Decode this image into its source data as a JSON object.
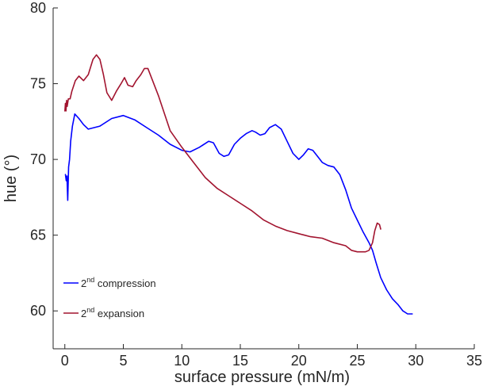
{
  "chart_data": {
    "type": "line",
    "title": "",
    "xlabel": "surface pressure (mN/m)",
    "ylabel": "hue (°)",
    "xlim": [
      -1,
      35
    ],
    "ylim": [
      57.5,
      80
    ],
    "x_ticks": [
      0,
      5,
      10,
      15,
      20,
      25,
      30,
      35
    ],
    "y_ticks": [
      60,
      65,
      70,
      75,
      80
    ],
    "grid": false,
    "legend_position": "bottom-left",
    "series": [
      {
        "name": "compression",
        "legend": {
          "prefix": "2",
          "sup": "nd",
          "suffix": " compression"
        },
        "color": "#0000ff",
        "points": [
          [
            0.05,
            69.0
          ],
          [
            0.12,
            68.6
          ],
          [
            0.18,
            68.9
          ],
          [
            0.25,
            67.3
          ],
          [
            0.32,
            69.5
          ],
          [
            0.4,
            70.0
          ],
          [
            0.5,
            71.2
          ],
          [
            0.65,
            72.2
          ],
          [
            0.85,
            73.0
          ],
          [
            1.2,
            72.7
          ],
          [
            1.6,
            72.3
          ],
          [
            2.0,
            72.0
          ],
          [
            3.0,
            72.2
          ],
          [
            4.0,
            72.7
          ],
          [
            5.0,
            72.9
          ],
          [
            6.0,
            72.6
          ],
          [
            7.0,
            72.1
          ],
          [
            8.0,
            71.6
          ],
          [
            9.0,
            71.0
          ],
          [
            10.0,
            70.6
          ],
          [
            10.7,
            70.5
          ],
          [
            11.5,
            70.8
          ],
          [
            12.3,
            71.2
          ],
          [
            12.7,
            71.1
          ],
          [
            13.2,
            70.4
          ],
          [
            13.6,
            70.2
          ],
          [
            14.0,
            70.3
          ],
          [
            14.5,
            71.0
          ],
          [
            15.0,
            71.4
          ],
          [
            15.5,
            71.7
          ],
          [
            16.0,
            71.9
          ],
          [
            16.3,
            71.8
          ],
          [
            16.7,
            71.6
          ],
          [
            17.1,
            71.7
          ],
          [
            17.5,
            72.1
          ],
          [
            18.0,
            72.3
          ],
          [
            18.5,
            72.0
          ],
          [
            19.0,
            71.2
          ],
          [
            19.5,
            70.4
          ],
          [
            20.0,
            70.0
          ],
          [
            20.4,
            70.3
          ],
          [
            20.8,
            70.7
          ],
          [
            21.2,
            70.6
          ],
          [
            21.6,
            70.2
          ],
          [
            22.0,
            69.8
          ],
          [
            22.5,
            69.6
          ],
          [
            23.0,
            69.5
          ],
          [
            23.5,
            69.0
          ],
          [
            24.0,
            68.0
          ],
          [
            24.5,
            66.8
          ],
          [
            25.0,
            66.0
          ],
          [
            25.5,
            65.2
          ],
          [
            26.0,
            64.5
          ],
          [
            26.3,
            64.0
          ],
          [
            26.6,
            63.2
          ],
          [
            27.0,
            62.2
          ],
          [
            27.5,
            61.4
          ],
          [
            28.0,
            60.8
          ],
          [
            28.5,
            60.4
          ],
          [
            28.9,
            60.0
          ],
          [
            29.3,
            59.8
          ],
          [
            29.7,
            59.8
          ]
        ]
      },
      {
        "name": "expansion",
        "legend": {
          "prefix": "2",
          "sup": "nd",
          "suffix": " expansion"
        },
        "color": "#a2142f",
        "points": [
          [
            0.0,
            73.2
          ],
          [
            0.05,
            73.7
          ],
          [
            0.1,
            73.2
          ],
          [
            0.15,
            73.9
          ],
          [
            0.2,
            73.5
          ],
          [
            0.3,
            74.0
          ],
          [
            0.45,
            74.0
          ],
          [
            0.6,
            74.5
          ],
          [
            0.9,
            75.2
          ],
          [
            1.2,
            75.5
          ],
          [
            1.6,
            75.2
          ],
          [
            2.0,
            75.6
          ],
          [
            2.4,
            76.6
          ],
          [
            2.7,
            76.9
          ],
          [
            3.0,
            76.6
          ],
          [
            3.3,
            75.6
          ],
          [
            3.6,
            74.4
          ],
          [
            4.0,
            73.9
          ],
          [
            4.4,
            74.5
          ],
          [
            4.8,
            75.0
          ],
          [
            5.1,
            75.4
          ],
          [
            5.4,
            74.9
          ],
          [
            5.8,
            74.8
          ],
          [
            6.1,
            75.2
          ],
          [
            6.5,
            75.6
          ],
          [
            6.8,
            76.0
          ],
          [
            7.1,
            76.0
          ],
          [
            7.5,
            75.2
          ],
          [
            8.0,
            74.2
          ],
          [
            9.0,
            71.9
          ],
          [
            10.0,
            70.8
          ],
          [
            11.0,
            69.8
          ],
          [
            12.0,
            68.8
          ],
          [
            13.0,
            68.1
          ],
          [
            14.0,
            67.6
          ],
          [
            15.0,
            67.1
          ],
          [
            16.0,
            66.6
          ],
          [
            17.0,
            66.0
          ],
          [
            18.0,
            65.6
          ],
          [
            19.0,
            65.3
          ],
          [
            20.0,
            65.1
          ],
          [
            21.0,
            64.9
          ],
          [
            22.0,
            64.8
          ],
          [
            23.0,
            64.5
          ],
          [
            24.0,
            64.3
          ],
          [
            24.5,
            64.0
          ],
          [
            25.0,
            63.9
          ],
          [
            25.7,
            63.9
          ],
          [
            26.0,
            64.0
          ],
          [
            26.3,
            64.5
          ],
          [
            26.5,
            65.3
          ],
          [
            26.7,
            65.8
          ],
          [
            26.9,
            65.7
          ],
          [
            27.0,
            65.4
          ]
        ]
      }
    ]
  }
}
